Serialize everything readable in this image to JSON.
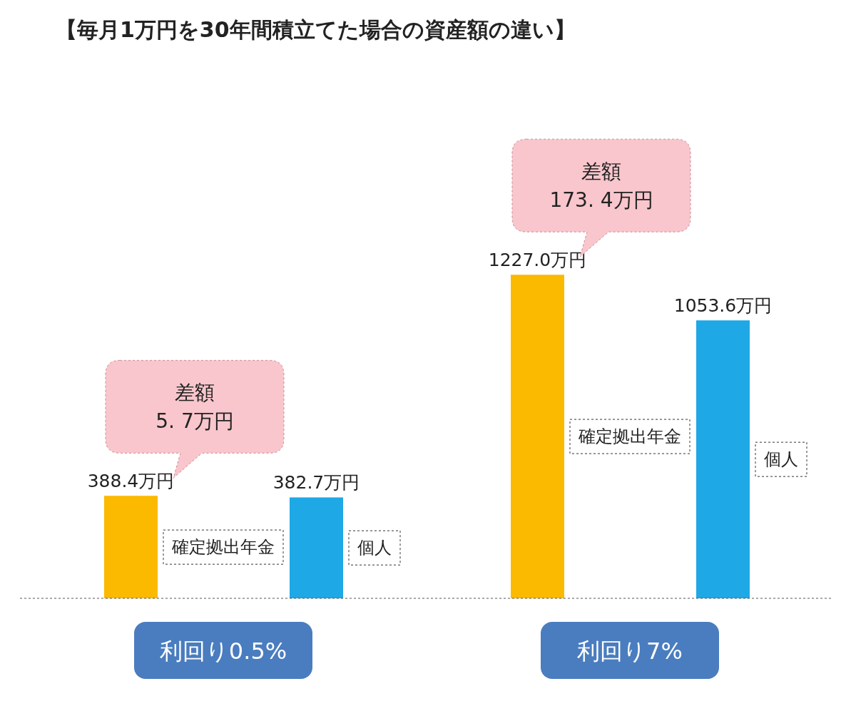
{
  "chart_data": {
    "type": "bar",
    "title": "【毎月1万円を30年間積立てた場合の資産額の違い】",
    "categories": [
      "利回り0.5%",
      "利回り7%"
    ],
    "series": [
      {
        "name": "確定拠出年金",
        "color": "#fbb900",
        "values": [
          388.4,
          1227.0
        ],
        "value_labels": [
          "388.4万円",
          "1227.0万円"
        ]
      },
      {
        "name": "個人",
        "color": "#1ea8e6",
        "values": [
          382.7,
          1053.6
        ],
        "value_labels": [
          "382.7万円",
          "1053.6万円"
        ]
      }
    ],
    "annotations": [
      "差額\n5. 7万円",
      "差額\n173. 4万円"
    ]
  }
}
